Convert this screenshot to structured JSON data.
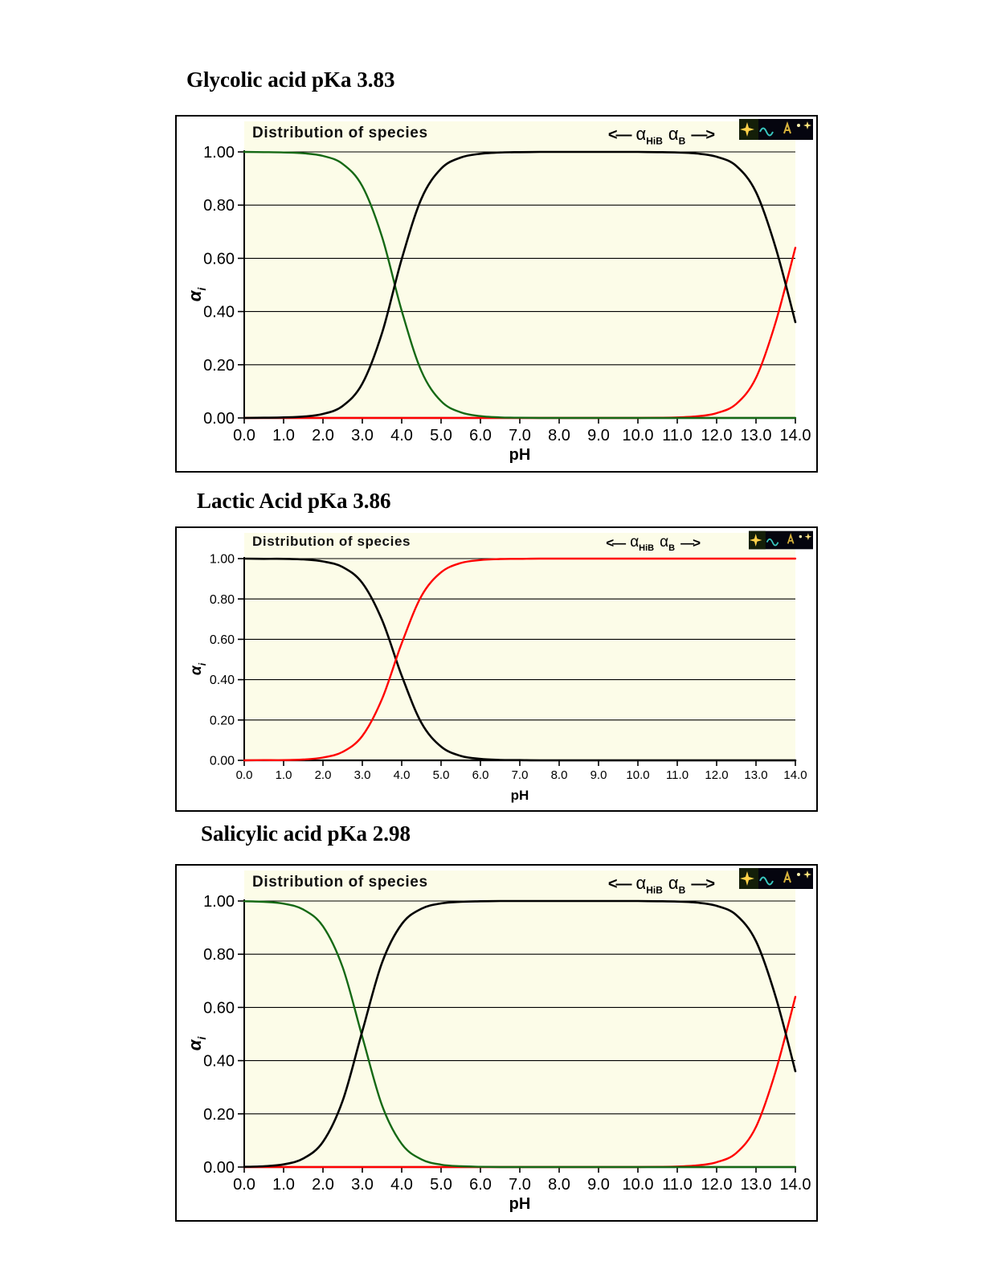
{
  "page": {
    "background": "#ffffff"
  },
  "chart_data": [
    {
      "type": "line",
      "heading": "Glycolic acid pKa 3.83",
      "title": "Distribution of species",
      "legend": {
        "left_arrow": "<—",
        "alpha": "α",
        "sub_hib": "HiB",
        "sub_b": "B",
        "right_arrow": "—>"
      },
      "xlabel": "pH",
      "ylabel": {
        "symbol": "α",
        "sub": "i"
      },
      "xlim": [
        0,
        14
      ],
      "ylim": [
        0,
        1
      ],
      "plot_bg": "#fcfce8",
      "grid": "horizontal",
      "x_tick_values": [
        0,
        1,
        2,
        3,
        4,
        5,
        6,
        7,
        8,
        9,
        10,
        11,
        12,
        13,
        14
      ],
      "x_tick_labels": [
        "0.0",
        "1.0",
        "2.0",
        "3.0",
        "4.0",
        "5.0",
        "6.0",
        "7.0",
        "8.0",
        "9.0",
        "10.0",
        "11.0",
        "12.0",
        "13.0",
        "14.0"
      ],
      "y_tick_values": [
        0,
        0.2,
        0.4,
        0.6,
        0.8,
        1
      ],
      "y_tick_labels": [
        "0.00",
        "0.20",
        "0.40",
        "0.60",
        "0.80",
        "1.00"
      ],
      "x": [
        0,
        0.5,
        1,
        1.5,
        2,
        2.5,
        3,
        3.5,
        4,
        4.5,
        5,
        5.5,
        6,
        6.5,
        7,
        7.5,
        8,
        8.5,
        9,
        9.5,
        10,
        10.5,
        11,
        11.5,
        12,
        12.5,
        13,
        13.5,
        14
      ],
      "series": [
        {
          "name": "alpha-red-high-ph",
          "color": "#ff0000",
          "width": 2.4,
          "values": [
            0,
            0,
            0,
            0,
            0,
            0,
            0,
            0,
            0,
            0,
            0,
            0,
            0,
            0,
            0,
            0,
            0,
            0,
            0,
            0,
            0,
            0.001,
            0.002,
            0.006,
            0.018,
            0.053,
            0.151,
            0.36,
            0.64
          ]
        },
        {
          "name": "alpha-HiB-green",
          "color": "#156915",
          "width": 2.4,
          "values": [
            1,
            0.999,
            0.998,
            0.995,
            0.985,
            0.955,
            0.871,
            0.681,
            0.403,
            0.176,
            0.063,
            0.021,
            0.007,
            0.002,
            0.001,
            0,
            0,
            0,
            0,
            0,
            0,
            0,
            0,
            0,
            0,
            0,
            0,
            0,
            0
          ]
        },
        {
          "name": "alpha-B-black",
          "color": "#000000",
          "width": 2.6,
          "values": [
            0,
            0.001,
            0.002,
            0.005,
            0.015,
            0.045,
            0.129,
            0.319,
            0.597,
            0.824,
            0.937,
            0.979,
            0.993,
            0.998,
            0.999,
            1,
            1,
            1,
            1,
            1,
            1,
            0.999,
            0.998,
            0.994,
            0.982,
            0.947,
            0.849,
            0.64,
            0.36
          ]
        }
      ]
    },
    {
      "type": "line",
      "heading": "Lactic Acid pKa 3.86",
      "title": "Distribution of species",
      "legend": {
        "left_arrow": "<—",
        "alpha": "α",
        "sub_hib": "HiB",
        "sub_b": "B",
        "right_arrow": "—>"
      },
      "xlabel": "pH",
      "ylabel": {
        "symbol": "α",
        "sub": "i"
      },
      "xlim": [
        0,
        14
      ],
      "ylim": [
        0,
        1
      ],
      "plot_bg": "#fcfce8",
      "grid": "horizontal",
      "x_tick_values": [
        0,
        1,
        2,
        3,
        4,
        5,
        6,
        7,
        8,
        9,
        10,
        11,
        12,
        13,
        14
      ],
      "x_tick_labels": [
        "0.0",
        "1.0",
        "2.0",
        "3.0",
        "4.0",
        "5.0",
        "6.0",
        "7.0",
        "8.0",
        "9.0",
        "10.0",
        "11.0",
        "12.0",
        "13.0",
        "14.0"
      ],
      "y_tick_values": [
        0,
        0.2,
        0.4,
        0.6,
        0.8,
        1
      ],
      "y_tick_labels": [
        "0.00",
        "0.20",
        "0.40",
        "0.60",
        "0.80",
        "1.00"
      ],
      "x": [
        0,
        0.5,
        1,
        1.5,
        2,
        2.5,
        3,
        3.5,
        4,
        4.5,
        5,
        5.5,
        6,
        6.5,
        7,
        7.5,
        8,
        8.5,
        9,
        9.5,
        10,
        10.5,
        11,
        11.5,
        12,
        12.5,
        13,
        13.5,
        14
      ],
      "series": [
        {
          "name": "alpha-HiB-black",
          "color": "#000000",
          "width": 2.6,
          "values": [
            1,
            0.999,
            0.999,
            0.996,
            0.986,
            0.958,
            0.879,
            0.696,
            0.42,
            0.186,
            0.068,
            0.022,
            0.007,
            0.002,
            0.001,
            0,
            0,
            0,
            0,
            0,
            0,
            0,
            0,
            0,
            0,
            0,
            0,
            0,
            0
          ]
        },
        {
          "name": "alpha-B-red",
          "color": "#ff0000",
          "width": 2.4,
          "values": [
            0,
            0.001,
            0.001,
            0.004,
            0.014,
            0.042,
            0.121,
            0.304,
            0.58,
            0.814,
            0.932,
            0.978,
            0.993,
            0.998,
            0.999,
            1,
            1,
            1,
            1,
            1,
            1,
            1,
            1,
            1,
            1,
            1,
            1,
            1,
            1
          ]
        }
      ]
    },
    {
      "type": "line",
      "heading": "Salicylic acid pKa 2.98",
      "title": "Distribution of species",
      "legend": {
        "left_arrow": "<—",
        "alpha": "α",
        "sub_hib": "HiB",
        "sub_b": "B",
        "right_arrow": "—>"
      },
      "xlabel": "pH",
      "ylabel": {
        "symbol": "α",
        "sub": "i"
      },
      "xlim": [
        0,
        14
      ],
      "ylim": [
        0,
        1
      ],
      "plot_bg": "#fcfce8",
      "grid": "horizontal",
      "x_tick_values": [
        0,
        1,
        2,
        3,
        4,
        5,
        6,
        7,
        8,
        9,
        10,
        11,
        12,
        13,
        14
      ],
      "x_tick_labels": [
        "0.0",
        "1.0",
        "2.0",
        "3.0",
        "4.0",
        "5.0",
        "6.0",
        "7.0",
        "8.0",
        "9.0",
        "10.0",
        "11.0",
        "12.0",
        "13.0",
        "14.0"
      ],
      "y_tick_values": [
        0,
        0.2,
        0.4,
        0.6,
        0.8,
        1
      ],
      "y_tick_labels": [
        "0.00",
        "0.20",
        "0.40",
        "0.60",
        "0.80",
        "1.00"
      ],
      "x": [
        0,
        0.5,
        1,
        1.5,
        2,
        2.5,
        3,
        3.5,
        4,
        4.5,
        5,
        5.5,
        6,
        6.5,
        7,
        7.5,
        8,
        8.5,
        9,
        9.5,
        10,
        10.5,
        11,
        11.5,
        12,
        12.5,
        13,
        13.5,
        14
      ],
      "series": [
        {
          "name": "alpha-red-high-ph",
          "color": "#ff0000",
          "width": 2.4,
          "values": [
            0,
            0,
            0,
            0,
            0,
            0,
            0,
            0,
            0,
            0,
            0,
            0,
            0,
            0,
            0,
            0,
            0,
            0,
            0,
            0,
            0,
            0.001,
            0.002,
            0.006,
            0.018,
            0.053,
            0.151,
            0.36,
            0.64
          ]
        },
        {
          "name": "alpha-HiB-green",
          "color": "#156915",
          "width": 2.4,
          "values": [
            0.999,
            0.997,
            0.99,
            0.968,
            0.905,
            0.751,
            0.489,
            0.232,
            0.087,
            0.029,
            0.009,
            0.003,
            0.001,
            0,
            0,
            0,
            0,
            0,
            0,
            0,
            0,
            0,
            0,
            0,
            0,
            0,
            0,
            0,
            0
          ]
        },
        {
          "name": "alpha-B-black",
          "color": "#000000",
          "width": 2.6,
          "values": [
            0.001,
            0.003,
            0.01,
            0.032,
            0.095,
            0.249,
            0.511,
            0.768,
            0.913,
            0.971,
            0.991,
            0.997,
            0.999,
            1,
            1,
            1,
            1,
            1,
            1,
            1,
            1,
            0.999,
            0.998,
            0.994,
            0.982,
            0.947,
            0.849,
            0.64,
            0.36
          ]
        }
      ]
    }
  ]
}
